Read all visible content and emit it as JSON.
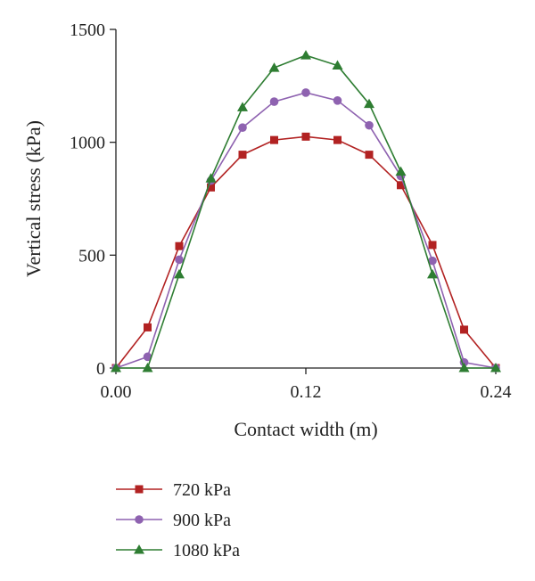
{
  "chart_data": {
    "type": "line",
    "title": "",
    "xlabel": "Contact width (m)",
    "ylabel": "Vertical stress (kPa)",
    "xlim": [
      0,
      0.24
    ],
    "ylim": [
      0,
      1500
    ],
    "x_ticks": [
      0,
      0.12,
      0.24
    ],
    "x_tick_labels": [
      "0.00",
      "0.12",
      "0.24"
    ],
    "y_ticks": [
      0,
      500,
      1000,
      1500
    ],
    "y_tick_labels": [
      "0",
      "500",
      "1000",
      "1500"
    ],
    "grid": false,
    "legend_position": "bottom",
    "x": [
      0,
      0.02,
      0.04,
      0.06,
      0.08,
      0.1,
      0.12,
      0.14,
      0.16,
      0.18,
      0.2,
      0.22,
      0.24
    ],
    "series": [
      {
        "name": "720 kPa",
        "color": "#b22222",
        "marker": "square",
        "values": [
          0,
          180,
          540,
          800,
          945,
          1010,
          1025,
          1010,
          945,
          810,
          545,
          170,
          0
        ]
      },
      {
        "name": "900 kPa",
        "color": "#8e62b0",
        "marker": "circle",
        "values": [
          0,
          50,
          480,
          830,
          1065,
          1180,
          1220,
          1185,
          1075,
          850,
          475,
          25,
          0
        ]
      },
      {
        "name": "1080 kPa",
        "color": "#2e7d32",
        "marker": "triangle",
        "values": [
          0,
          0,
          415,
          840,
          1155,
          1330,
          1385,
          1340,
          1170,
          870,
          415,
          0,
          0
        ]
      }
    ]
  }
}
